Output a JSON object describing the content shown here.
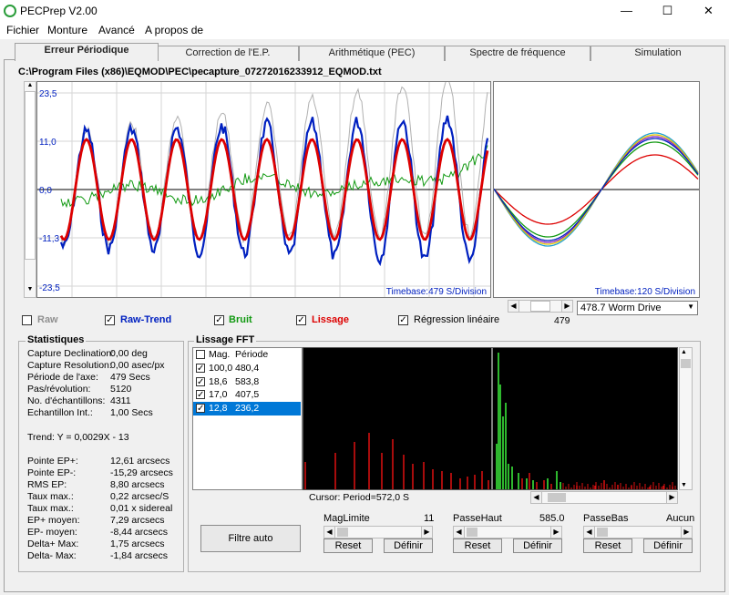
{
  "window": {
    "title": "PECPrep V2.00",
    "minimize": "—",
    "maximize": "☐",
    "close": "✕"
  },
  "menu": [
    "Fichier",
    "Monture",
    "Avancé",
    "A propos de"
  ],
  "tabs": [
    {
      "label": "Erreur Périodique",
      "active": true
    },
    {
      "label": "Correction de l'E.P."
    },
    {
      "label": "Arithmétique (PEC)"
    },
    {
      "label": "Spectre de fréquence"
    },
    {
      "label": "Simulation"
    }
  ],
  "file_path": "C:\\Program Files (x86)\\EQMOD\\PEC\\pecapture_07272016233912_EQMOD.txt",
  "main_plot": {
    "y_ticks": [
      "23,5",
      "11,0",
      "0,0",
      "-11,3",
      "-23,5"
    ],
    "timebase": "Timebase:479 S/Division"
  },
  "side_plot": {
    "timebase": "Timebase:120 S/Division",
    "slider_value": "479",
    "drive_select": "478.7 Worm Drive"
  },
  "series_toggles": [
    {
      "label": "Raw",
      "checked": false,
      "color": "#808080"
    },
    {
      "label": "Raw-Trend",
      "checked": true,
      "color": "#0020c0"
    },
    {
      "label": "Bruit",
      "checked": true,
      "color": "#119911"
    },
    {
      "label": "Lissage",
      "checked": true,
      "color": "#dd0000"
    },
    {
      "label": "Régression linéaire",
      "checked": true,
      "color": "#000000"
    }
  ],
  "stats": {
    "title": "Statistiques",
    "rows1": [
      [
        "Capture Declination:",
        "0,00 deg"
      ],
      [
        "Capture Resolution:",
        "0,00 asec/px"
      ],
      [
        "Période de l'axe:",
        "479 Secs"
      ],
      [
        "Pas/révolution:",
        "5120"
      ],
      [
        "No. d'échantillons:",
        "4311"
      ],
      [
        "Echantillon Int.:",
        "1,00 Secs"
      ]
    ],
    "trend": "Trend: Y = 0,0029X - 13",
    "rows2": [
      [
        "Pointe EP+:",
        "12,61 arcsecs"
      ],
      [
        "Pointe EP-:",
        "-15,29 arcsecs"
      ],
      [
        "RMS EP:",
        "8,80 arcsecs"
      ],
      [
        "Taux max.:",
        "0,22 arcsec/S"
      ],
      [
        "Taux max.:",
        "0,01 x sidereal"
      ],
      [
        "EP+ moyen:",
        "7,29 arcsecs"
      ],
      [
        "EP- moyen:",
        "-8,44 arcsecs"
      ],
      [
        "Delta+ Max:",
        "1,75 arcsecs"
      ],
      [
        "Delta- Max:",
        "-1,84 arcsecs"
      ]
    ]
  },
  "fft": {
    "title": "Lissage FFT",
    "list_header": [
      "Mag.",
      "Période"
    ],
    "rows": [
      {
        "mag": "100,0",
        "period": "480,4",
        "checked": true
      },
      {
        "mag": "18,6",
        "period": "583,8",
        "checked": true
      },
      {
        "mag": "17,0",
        "period": "407,5",
        "checked": true
      },
      {
        "mag": "12,8",
        "period": "236,2",
        "checked": true,
        "selected": true
      }
    ],
    "cursor": "Cursor: Period=572,0 S",
    "filter_button": "Filtre auto",
    "maglimit": {
      "label": "MagLimite",
      "value": "11"
    },
    "highpass": {
      "label": "PasseHaut",
      "value": "585.0"
    },
    "lowpass": {
      "label": "PasseBas",
      "value": "Aucun"
    },
    "reset": "Reset",
    "define": "Définir"
  },
  "colors": {
    "raw": "#b0b0b0",
    "trend": "#0020c0",
    "noise": "#119911",
    "smooth": "#dd0000"
  }
}
